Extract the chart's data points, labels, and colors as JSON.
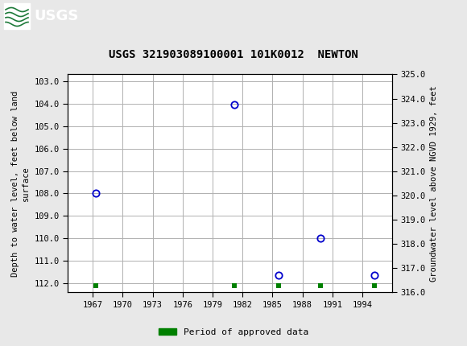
{
  "title": "USGS 321903089100001 101K0012  NEWTON",
  "ylabel_left": "Depth to water level, feet below land\nsurface",
  "ylabel_right": "Groundwater level above NGVD 1929, feet",
  "xlim": [
    1964.5,
    1997.0
  ],
  "ylim_left": [
    112.4,
    102.7
  ],
  "ylim_right_bottom": 316.0,
  "ylim_right_top": 325.0,
  "yticks_left": [
    103.0,
    104.0,
    105.0,
    106.0,
    107.0,
    108.0,
    109.0,
    110.0,
    111.0,
    112.0
  ],
  "yticks_right": [
    316.0,
    317.0,
    318.0,
    319.0,
    320.0,
    321.0,
    322.0,
    323.0,
    324.0,
    325.0
  ],
  "xticks": [
    1967,
    1970,
    1973,
    1976,
    1979,
    1982,
    1985,
    1988,
    1991,
    1994
  ],
  "data_x": [
    1967.3,
    1981.2,
    1985.6,
    1989.8,
    1995.2
  ],
  "data_y": [
    108.0,
    104.05,
    111.65,
    110.0,
    111.65
  ],
  "approved_x": [
    1967.3,
    1981.2,
    1985.6,
    1989.8,
    1995.2
  ],
  "approved_y": [
    112.1,
    112.1,
    112.1,
    112.1,
    112.1
  ],
  "point_color": "#0000cc",
  "approved_color": "#008000",
  "header_color": "#1e7a3a",
  "background_color": "#e8e8e8",
  "plot_background": "#ffffff",
  "grid_color": "#b0b0b0",
  "legend_label": "Period of approved data"
}
